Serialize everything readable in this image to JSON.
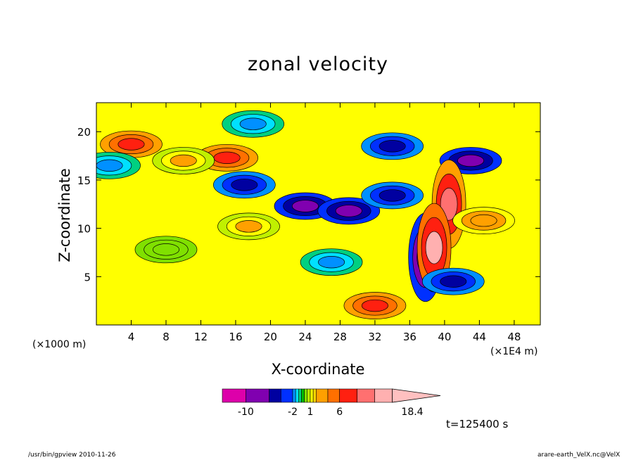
{
  "chart_data": {
    "type": "heatmap",
    "title": "zonal velocity",
    "xlabel": "X-coordinate",
    "ylabel": "Z-coordinate",
    "x_unit_left": "(×1000 m)",
    "x_unit_right": "(×1E4 m)",
    "xlim": [
      0,
      51
    ],
    "ylim": [
      0,
      23
    ],
    "x_ticks": [
      "4",
      "8",
      "12",
      "16",
      "20",
      "24",
      "28",
      "32",
      "36",
      "40",
      "44",
      "48"
    ],
    "y_ticks": [
      "5",
      "10",
      "15",
      "20"
    ],
    "colorbar": {
      "levels": [
        -14,
        -10,
        -6,
        -4,
        -2,
        -1.5,
        -1,
        -0.5,
        0,
        0.5,
        1,
        1.5,
        2,
        4,
        6,
        9,
        12,
        15,
        18.4
      ],
      "colors": [
        "#dd00aa",
        "#8000b0",
        "#0000a0",
        "#0030ff",
        "#0090ff",
        "#00e0ff",
        "#00d080",
        "#00c000",
        "#80e000",
        "#c0f000",
        "#ffff00",
        "#ffd700",
        "#ffa000",
        "#ff7000",
        "#ff2010",
        "#ff7070",
        "#ffb0b0",
        "#ffc0c0"
      ],
      "tick_labels": [
        "-10",
        "-2",
        "1",
        "6",
        "18.4"
      ],
      "tick_values": [
        -10,
        -2,
        1,
        6,
        18.4
      ]
    },
    "features": [
      {
        "x": 4,
        "z": 18.7,
        "value": 6
      },
      {
        "x": 1.5,
        "z": 16.5,
        "value": -2
      },
      {
        "x": 15,
        "z": 17.3,
        "value": 6
      },
      {
        "x": 10,
        "z": 17.0,
        "value": 2
      },
      {
        "x": 17,
        "z": 14.5,
        "value": -5
      },
      {
        "x": 24,
        "z": 12.3,
        "value": -7
      },
      {
        "x": 29,
        "z": 11.8,
        "value": -7
      },
      {
        "x": 34,
        "z": 13.4,
        "value": -5
      },
      {
        "x": 34,
        "z": 18.5,
        "value": -6
      },
      {
        "x": 43,
        "z": 17.0,
        "value": -7
      },
      {
        "x": 40.5,
        "z": 12.5,
        "value": 9
      },
      {
        "x": 44.5,
        "z": 10.8,
        "value": 3
      },
      {
        "x": 17.5,
        "z": 10.2,
        "value": 2
      },
      {
        "x": 18,
        "z": 20.8,
        "value": -2
      },
      {
        "x": 8,
        "z": 7.8,
        "value": 0
      },
      {
        "x": 37.8,
        "z": 7,
        "value": -10
      },
      {
        "x": 38.8,
        "z": 8,
        "value": 12
      },
      {
        "x": 41,
        "z": 4.5,
        "value": -5
      },
      {
        "x": 32,
        "z": 2,
        "value": 6
      },
      {
        "x": 27,
        "z": 6.5,
        "value": -2
      }
    ]
  },
  "timestamp": "t=125400 s",
  "footer": {
    "left": "/usr/bin/gpview   2010-11-26",
    "right": "arare-earth_VelX.nc@VelX"
  }
}
